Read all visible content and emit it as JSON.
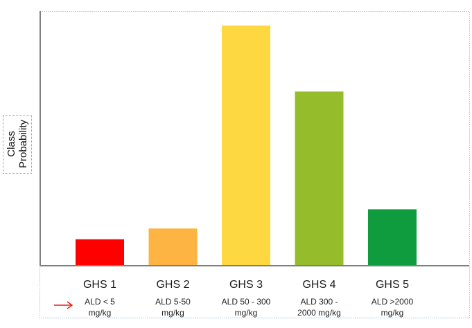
{
  "chart_data": {
    "type": "bar",
    "categories": [
      "GHS 1",
      "GHS 2",
      "GHS 3",
      "GHS 4",
      "GHS 5"
    ],
    "sublabels": [
      [
        "ALD < 5",
        "mg/kg"
      ],
      [
        "ALD 5-50",
        "mg/kg"
      ],
      [
        "ALD 50 - 300",
        "mg/kg"
      ],
      [
        "ALD 300 -",
        "2000 mg/kg"
      ],
      [
        "ALD >2000",
        "mg/kg"
      ]
    ],
    "values": [
      0.11,
      0.155,
      1.0,
      0.725,
      0.235
    ],
    "ylim": [
      0,
      1.06
    ],
    "ylabel_lines": [
      "Class",
      "Probability"
    ],
    "bar_colors": [
      "#fe0000",
      "#fdb443",
      "#fdd841",
      "#95bd2b",
      "#0e9c3f"
    ],
    "axis_color": "#7f7f7f",
    "frame_color": "#6aa6d8",
    "arrow_color": "#e5231b",
    "grid": false,
    "legend": "none"
  }
}
